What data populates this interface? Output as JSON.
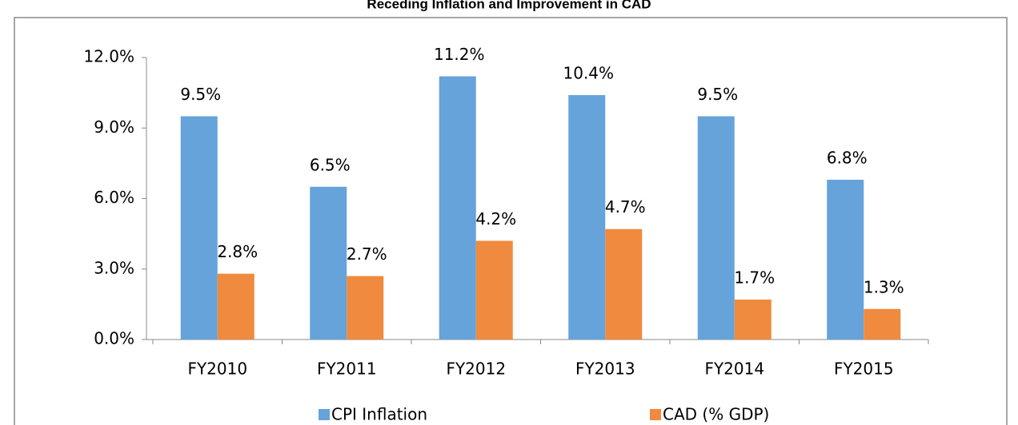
{
  "chart_data": {
    "type": "bar",
    "title": "Receding Inflation and Improvement in CAD",
    "categories": [
      "FY2010",
      "FY2011",
      "FY2012",
      "FY2013",
      "FY2014",
      "FY2015"
    ],
    "series": [
      {
        "name": "CPI Inflation",
        "color": "#65a3da",
        "values": [
          9.5,
          6.5,
          11.2,
          10.4,
          9.5,
          6.8
        ],
        "value_labels": [
          "9.5%",
          "6.5%",
          "11.2%",
          "10.4%",
          "9.5%",
          "6.8%"
        ]
      },
      {
        "name": "CAD (% GDP)",
        "color": "#ef8a3e",
        "values": [
          2.8,
          2.7,
          4.2,
          4.7,
          1.7,
          1.3
        ],
        "value_labels": [
          "2.8%",
          "2.7%",
          "4.2%",
          "4.7%",
          "1.7%",
          "1.3%"
        ]
      }
    ],
    "ylim": [
      0,
      12
    ],
    "yticks": [
      {
        "value": 0,
        "label": "0.0%"
      },
      {
        "value": 3,
        "label": "3.0%"
      },
      {
        "value": 6,
        "label": "6.0%"
      },
      {
        "value": 9,
        "label": "9.0%"
      },
      {
        "value": 12,
        "label": "12.0%"
      }
    ],
    "legend": "bottom"
  }
}
